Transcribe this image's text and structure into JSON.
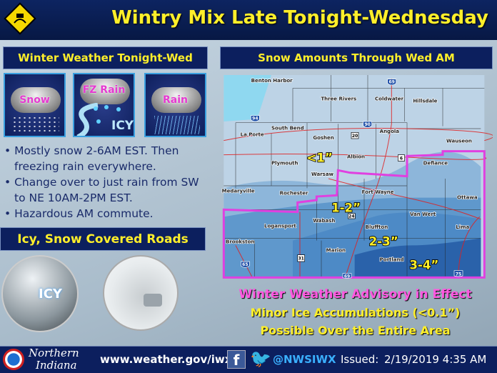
{
  "header": {
    "title": "Wintry Mix Late Tonight-Wednesday",
    "icon": "slippery-road-sign-icon"
  },
  "left": {
    "heading": "Winter Weather Tonight-Wed",
    "icons": [
      {
        "label": "Snow"
      },
      {
        "label": "FZ Rain",
        "badge": "ICY"
      },
      {
        "label": "Rain"
      }
    ],
    "bullets": [
      "Mostly snow 2-6AM EST. Then freezing rain everywhere.",
      "Change over to just rain from SW to NE 10AM-2PM EST.",
      "Hazardous AM commute."
    ],
    "roads_heading": "Icy, Snow Covered Roads",
    "photo_badge": "ICY"
  },
  "map": {
    "heading": "Snow Amounts Through Wed AM",
    "cities": [
      "Benton Harbor",
      "Three Rivers",
      "Coldwater",
      "Hillsdale",
      "South Bend",
      "La Porte",
      "Goshen",
      "Angola",
      "Wauseon",
      "Albion",
      "Plymouth",
      "Warsaw",
      "Defiance",
      "Medaryville",
      "Rochester",
      "Fort Wayne",
      "Ottawa",
      "Wabash",
      "Logansport",
      "Van Wert",
      "Lima",
      "Bluffton",
      "Brookston",
      "Marion",
      "Portland"
    ],
    "highways": [
      "69",
      "94",
      "90",
      "20",
      "6",
      "24",
      "31",
      "65",
      "69",
      "75"
    ],
    "amounts": [
      "<1”",
      "1-2”",
      "2-3”",
      "3-4”"
    ],
    "colors": {
      "advisory": "#e040e0",
      "light": "#bdd3e6",
      "mid": "#8db6da",
      "heavy": "#4d8ac6",
      "heaviest": "#2a62aa",
      "lake": "#8fd8f0"
    }
  },
  "advisory": [
    "Winter Weather Advisory in Effect",
    "Minor Ice Accumulations (<0.1”)",
    "Possible Over the Entire Area"
  ],
  "footer": {
    "office_line1": "Northern",
    "office_line2": "Indiana",
    "url": "www.weather.gov/iwx",
    "handle": "@NWSIWX",
    "issued_label": "Issued:",
    "issued": "2/19/2019 4:35 AM"
  }
}
